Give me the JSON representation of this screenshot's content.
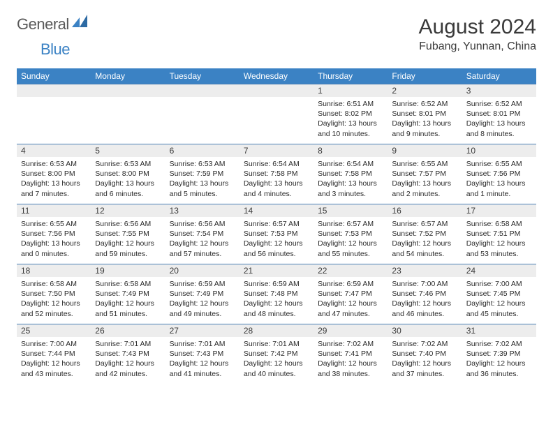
{
  "logo": {
    "text_general": "General",
    "text_blue": "Blue",
    "mark_color": "#3b82c4"
  },
  "title": "August 2024",
  "location": "Fubang, Yunnan, China",
  "colors": {
    "header_bg": "#3b82c4",
    "header_fg": "#ffffff",
    "daynum_bg": "#ededed",
    "cell_border": "#4a7fb5",
    "text": "#3a3a3a"
  },
  "day_headers": [
    "Sunday",
    "Monday",
    "Tuesday",
    "Wednesday",
    "Thursday",
    "Friday",
    "Saturday"
  ],
  "weeks": [
    [
      {
        "day": "",
        "sunrise": "",
        "sunset": "",
        "daylight": ""
      },
      {
        "day": "",
        "sunrise": "",
        "sunset": "",
        "daylight": ""
      },
      {
        "day": "",
        "sunrise": "",
        "sunset": "",
        "daylight": ""
      },
      {
        "day": "",
        "sunrise": "",
        "sunset": "",
        "daylight": ""
      },
      {
        "day": "1",
        "sunrise": "Sunrise: 6:51 AM",
        "sunset": "Sunset: 8:02 PM",
        "daylight": "Daylight: 13 hours and 10 minutes."
      },
      {
        "day": "2",
        "sunrise": "Sunrise: 6:52 AM",
        "sunset": "Sunset: 8:01 PM",
        "daylight": "Daylight: 13 hours and 9 minutes."
      },
      {
        "day": "3",
        "sunrise": "Sunrise: 6:52 AM",
        "sunset": "Sunset: 8:01 PM",
        "daylight": "Daylight: 13 hours and 8 minutes."
      }
    ],
    [
      {
        "day": "4",
        "sunrise": "Sunrise: 6:53 AM",
        "sunset": "Sunset: 8:00 PM",
        "daylight": "Daylight: 13 hours and 7 minutes."
      },
      {
        "day": "5",
        "sunrise": "Sunrise: 6:53 AM",
        "sunset": "Sunset: 8:00 PM",
        "daylight": "Daylight: 13 hours and 6 minutes."
      },
      {
        "day": "6",
        "sunrise": "Sunrise: 6:53 AM",
        "sunset": "Sunset: 7:59 PM",
        "daylight": "Daylight: 13 hours and 5 minutes."
      },
      {
        "day": "7",
        "sunrise": "Sunrise: 6:54 AM",
        "sunset": "Sunset: 7:58 PM",
        "daylight": "Daylight: 13 hours and 4 minutes."
      },
      {
        "day": "8",
        "sunrise": "Sunrise: 6:54 AM",
        "sunset": "Sunset: 7:58 PM",
        "daylight": "Daylight: 13 hours and 3 minutes."
      },
      {
        "day": "9",
        "sunrise": "Sunrise: 6:55 AM",
        "sunset": "Sunset: 7:57 PM",
        "daylight": "Daylight: 13 hours and 2 minutes."
      },
      {
        "day": "10",
        "sunrise": "Sunrise: 6:55 AM",
        "sunset": "Sunset: 7:56 PM",
        "daylight": "Daylight: 13 hours and 1 minute."
      }
    ],
    [
      {
        "day": "11",
        "sunrise": "Sunrise: 6:55 AM",
        "sunset": "Sunset: 7:56 PM",
        "daylight": "Daylight: 13 hours and 0 minutes."
      },
      {
        "day": "12",
        "sunrise": "Sunrise: 6:56 AM",
        "sunset": "Sunset: 7:55 PM",
        "daylight": "Daylight: 12 hours and 59 minutes."
      },
      {
        "day": "13",
        "sunrise": "Sunrise: 6:56 AM",
        "sunset": "Sunset: 7:54 PM",
        "daylight": "Daylight: 12 hours and 57 minutes."
      },
      {
        "day": "14",
        "sunrise": "Sunrise: 6:57 AM",
        "sunset": "Sunset: 7:53 PM",
        "daylight": "Daylight: 12 hours and 56 minutes."
      },
      {
        "day": "15",
        "sunrise": "Sunrise: 6:57 AM",
        "sunset": "Sunset: 7:53 PM",
        "daylight": "Daylight: 12 hours and 55 minutes."
      },
      {
        "day": "16",
        "sunrise": "Sunrise: 6:57 AM",
        "sunset": "Sunset: 7:52 PM",
        "daylight": "Daylight: 12 hours and 54 minutes."
      },
      {
        "day": "17",
        "sunrise": "Sunrise: 6:58 AM",
        "sunset": "Sunset: 7:51 PM",
        "daylight": "Daylight: 12 hours and 53 minutes."
      }
    ],
    [
      {
        "day": "18",
        "sunrise": "Sunrise: 6:58 AM",
        "sunset": "Sunset: 7:50 PM",
        "daylight": "Daylight: 12 hours and 52 minutes."
      },
      {
        "day": "19",
        "sunrise": "Sunrise: 6:58 AM",
        "sunset": "Sunset: 7:49 PM",
        "daylight": "Daylight: 12 hours and 51 minutes."
      },
      {
        "day": "20",
        "sunrise": "Sunrise: 6:59 AM",
        "sunset": "Sunset: 7:49 PM",
        "daylight": "Daylight: 12 hours and 49 minutes."
      },
      {
        "day": "21",
        "sunrise": "Sunrise: 6:59 AM",
        "sunset": "Sunset: 7:48 PM",
        "daylight": "Daylight: 12 hours and 48 minutes."
      },
      {
        "day": "22",
        "sunrise": "Sunrise: 6:59 AM",
        "sunset": "Sunset: 7:47 PM",
        "daylight": "Daylight: 12 hours and 47 minutes."
      },
      {
        "day": "23",
        "sunrise": "Sunrise: 7:00 AM",
        "sunset": "Sunset: 7:46 PM",
        "daylight": "Daylight: 12 hours and 46 minutes."
      },
      {
        "day": "24",
        "sunrise": "Sunrise: 7:00 AM",
        "sunset": "Sunset: 7:45 PM",
        "daylight": "Daylight: 12 hours and 45 minutes."
      }
    ],
    [
      {
        "day": "25",
        "sunrise": "Sunrise: 7:00 AM",
        "sunset": "Sunset: 7:44 PM",
        "daylight": "Daylight: 12 hours and 43 minutes."
      },
      {
        "day": "26",
        "sunrise": "Sunrise: 7:01 AM",
        "sunset": "Sunset: 7:43 PM",
        "daylight": "Daylight: 12 hours and 42 minutes."
      },
      {
        "day": "27",
        "sunrise": "Sunrise: 7:01 AM",
        "sunset": "Sunset: 7:43 PM",
        "daylight": "Daylight: 12 hours and 41 minutes."
      },
      {
        "day": "28",
        "sunrise": "Sunrise: 7:01 AM",
        "sunset": "Sunset: 7:42 PM",
        "daylight": "Daylight: 12 hours and 40 minutes."
      },
      {
        "day": "29",
        "sunrise": "Sunrise: 7:02 AM",
        "sunset": "Sunset: 7:41 PM",
        "daylight": "Daylight: 12 hours and 38 minutes."
      },
      {
        "day": "30",
        "sunrise": "Sunrise: 7:02 AM",
        "sunset": "Sunset: 7:40 PM",
        "daylight": "Daylight: 12 hours and 37 minutes."
      },
      {
        "day": "31",
        "sunrise": "Sunrise: 7:02 AM",
        "sunset": "Sunset: 7:39 PM",
        "daylight": "Daylight: 12 hours and 36 minutes."
      }
    ]
  ]
}
